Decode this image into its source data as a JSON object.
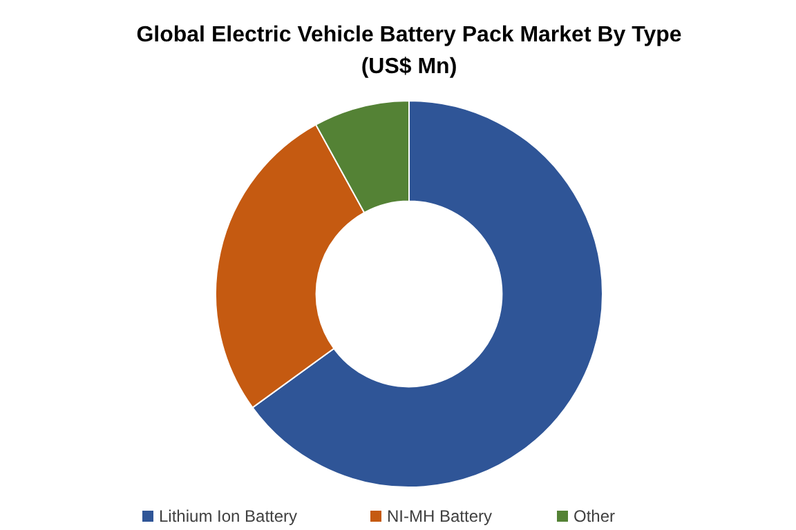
{
  "chart_data": {
    "type": "donut",
    "title": "Global Electric Vehicle Battery Pack Market By Type",
    "subtitle": "(US$ Mn)",
    "categories": [
      "Lithium Ion Battery",
      "NI-MH Battery",
      "Other"
    ],
    "values": [
      65,
      27,
      8
    ],
    "colors": [
      "#2f5597",
      "#c55a11",
      "#548235"
    ],
    "legend": "bottom"
  }
}
